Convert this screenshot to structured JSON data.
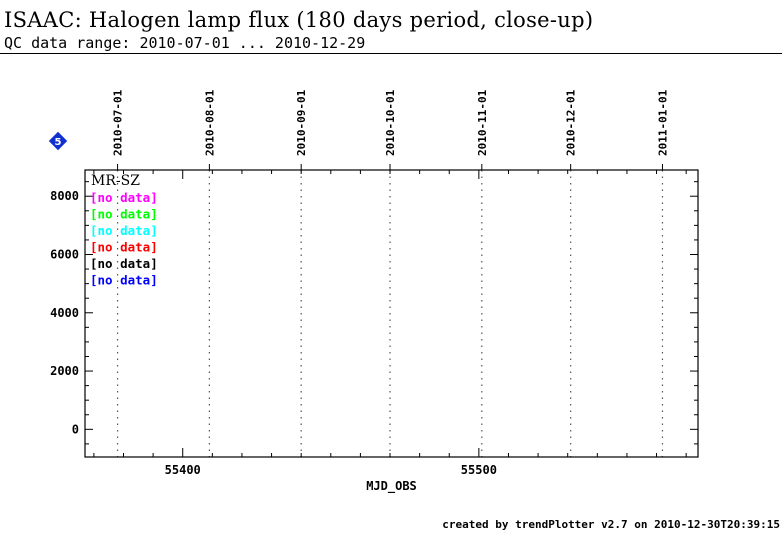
{
  "page": {
    "title": "ISAAC: Halogen lamp flux (180 days period, close-up)",
    "subtitle": "QC data range: 2010-07-01 ... 2010-12-29",
    "credit": "created by trendPlotter v2.7 on 2010-12-30T20:39:15",
    "badge_number": "5",
    "badge_color": "#1030d0"
  },
  "chart_data": {
    "type": "scatter",
    "title": "ISAAC: Halogen lamp flux (180 days period, close-up)",
    "xlabel": "MJD_OBS",
    "ylabel": "",
    "xlim": [
      55367,
      55574
    ],
    "ylim": [
      -950,
      8900
    ],
    "yticks": [
      0,
      2000,
      4000,
      6000,
      8000
    ],
    "xticks": [
      55400,
      55500
    ],
    "date_markers": [
      {
        "label": "2010-07-01",
        "x": 55378
      },
      {
        "label": "2010-08-01",
        "x": 55409
      },
      {
        "label": "2010-09-01",
        "x": 55440
      },
      {
        "label": "2010-10-01",
        "x": 55470
      },
      {
        "label": "2010-11-01",
        "x": 55501
      },
      {
        "label": "2010-12-01",
        "x": 55531
      },
      {
        "label": "2011-01-01",
        "x": 55562
      }
    ],
    "grid": "vertical dotted lines at month boundaries",
    "panel_label": "MR-SZ",
    "legend_position": "top-left",
    "series": [
      {
        "label": "[no data]",
        "color": "#ff00ff",
        "values": []
      },
      {
        "label": "[no data]",
        "color": "#00ff00",
        "values": []
      },
      {
        "label": "[no data]",
        "color": "#00ffff",
        "values": []
      },
      {
        "label": "[no data]",
        "color": "#ff0000",
        "values": []
      },
      {
        "label": "[no data]",
        "color": "#000000",
        "values": []
      },
      {
        "label": "[no data]",
        "color": "#0000ff",
        "values": []
      }
    ]
  }
}
